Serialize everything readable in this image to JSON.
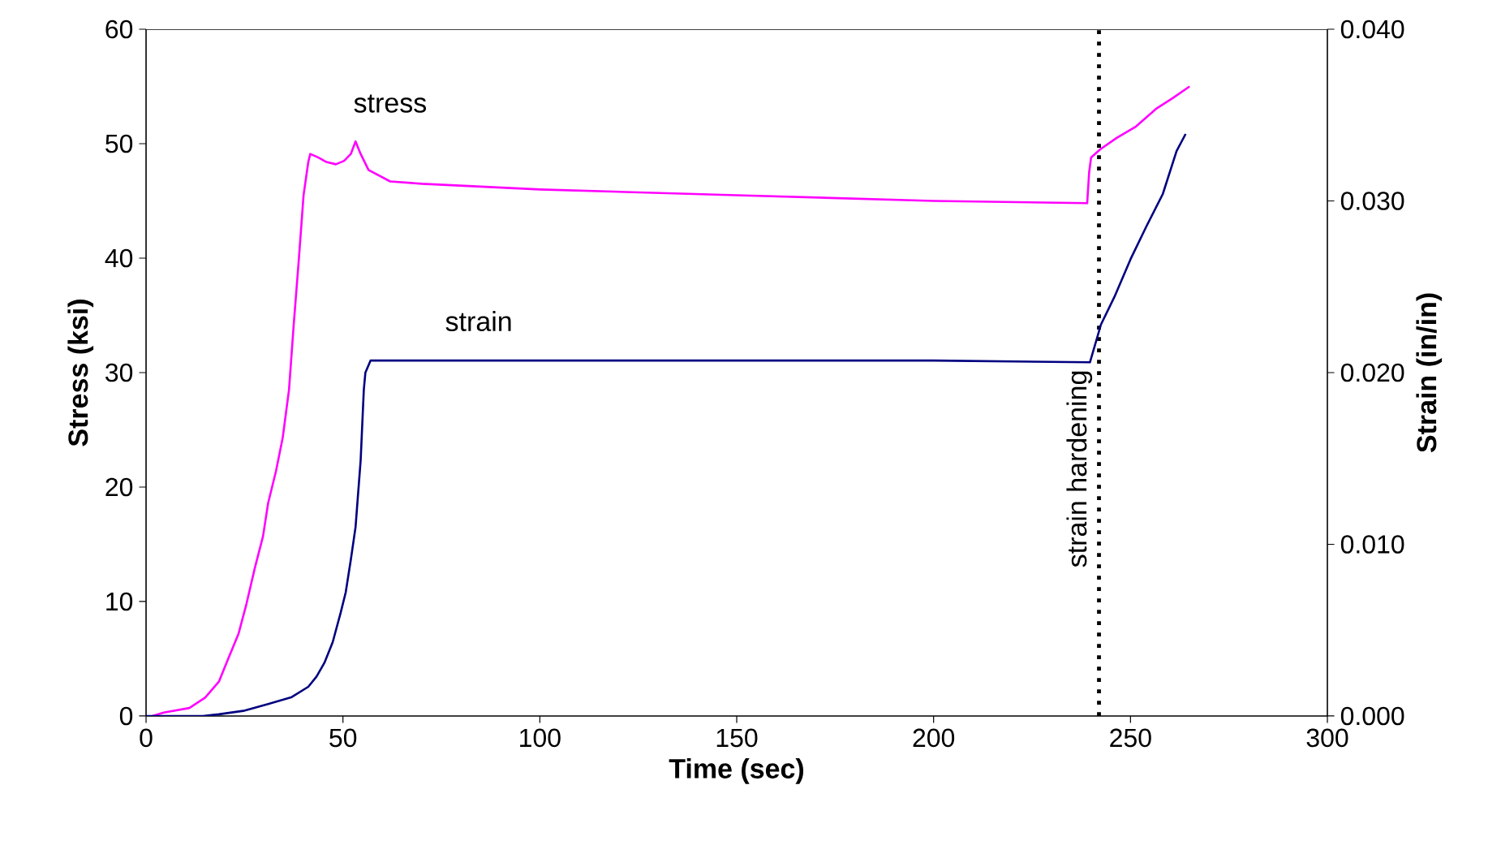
{
  "chart_data": {
    "type": "line",
    "xlabel": "Time (sec)",
    "ylabel": "Stress (ksi)",
    "y2label": "Strain (in/in)",
    "xlim": [
      0,
      300
    ],
    "xticks": [
      0,
      50,
      100,
      150,
      200,
      250,
      300
    ],
    "ylim": [
      0,
      60
    ],
    "yticks": [
      0,
      10,
      20,
      30,
      40,
      50,
      60
    ],
    "y2lim": [
      0,
      0.04
    ],
    "y2ticks": [
      {
        "value": 0,
        "label": "0.000"
      },
      {
        "value": 0.01,
        "label": "0.010"
      },
      {
        "value": 0.02,
        "label": "0.020"
      },
      {
        "value": 0.03,
        "label": "0.030"
      },
      {
        "value": 0.04,
        "label": "0.040"
      }
    ],
    "grid": false,
    "marker": "none",
    "line_style": "solid",
    "annotations": [
      "stress",
      "strain"
    ],
    "ref_lines": [
      {
        "axis": "x",
        "value": 242,
        "label": "strain hardening",
        "color": "#000000",
        "line_style": "dotted"
      }
    ],
    "series": [
      {
        "color": "#ff00ff",
        "x": [
          1.6,
          4.5,
          11,
          15,
          18.5,
          20.5,
          23.5,
          25.5,
          27.6,
          29.7,
          31,
          33,
          34.7,
          36.3,
          37.5,
          38.8,
          40,
          41.2,
          41.7,
          43.7,
          45.8,
          48.2,
          50.3,
          52,
          53.2,
          54.5,
          56.5,
          62,
          70,
          100,
          150,
          200,
          239,
          239.5,
          240,
          242.3,
          246.5,
          251.4,
          256.7,
          260.8,
          265
        ],
        "values": [
          0,
          0.3,
          0.7,
          1.6,
          3,
          4.7,
          7.2,
          9.8,
          12.9,
          15.7,
          18.6,
          21.4,
          24.3,
          28.5,
          34.2,
          39.9,
          45.5,
          48.4,
          49.1,
          48.8,
          48.4,
          48.2,
          48.5,
          49.1,
          50.2,
          49.1,
          47.7,
          46.7,
          46.5,
          46.0,
          45.5,
          45.0,
          44.8,
          47.5,
          48.8,
          49.5,
          50.5,
          51.5,
          53.1,
          54.0,
          55.0
        ]
      },
      {
        "color": "#000080",
        "axis": "y2",
        "x": [
          0,
          14.5,
          18.5,
          24.7,
          31,
          37,
          41.2,
          43.3,
          45.3,
          47.4,
          49.4,
          50.7,
          52,
          53.2,
          53.6,
          54.5,
          55.3,
          55.7,
          57,
          100,
          150,
          200,
          239.7,
          242.5,
          245.9,
          250,
          254,
          258.2,
          261.7,
          264
        ],
        "values": [
          0,
          0,
          0.0001,
          0.0003,
          0.0007,
          0.0011,
          0.0017,
          0.0023,
          0.0031,
          0.0043,
          0.006,
          0.0072,
          0.0091,
          0.011,
          0.0122,
          0.0149,
          0.019,
          0.02,
          0.0207,
          0.0207,
          0.0207,
          0.0207,
          0.0206,
          0.0228,
          0.0244,
          0.0266,
          0.0285,
          0.0304,
          0.0329,
          0.0339
        ]
      }
    ]
  }
}
